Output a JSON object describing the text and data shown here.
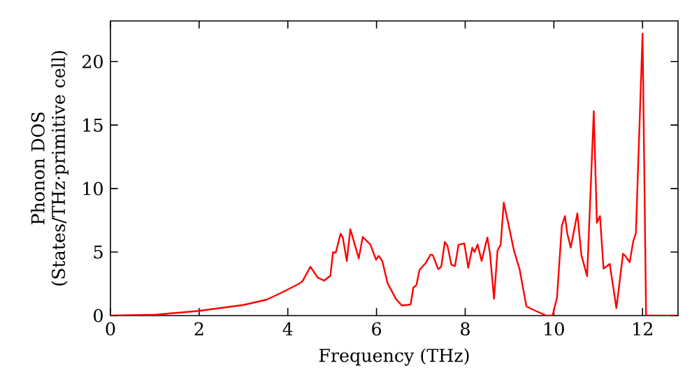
{
  "chart_data": {
    "type": "line",
    "xlabel": "Frequency (THz)",
    "ylabel": "Phonon DOS (States/THz·primitive cell)",
    "xlim": [
      0,
      12.8
    ],
    "ylim": [
      0,
      23.2
    ],
    "xticks": [
      0,
      2,
      4,
      6,
      8,
      10,
      12
    ],
    "yticks": [
      0,
      5,
      10,
      15,
      20
    ],
    "series": [
      {
        "color": "#ff0000",
        "x": [
          0,
          1.02,
          2.0,
          3.0,
          3.52,
          3.83,
          4.25,
          4.33,
          4.51,
          4.67,
          4.82,
          4.96,
          5.02,
          5.08,
          5.19,
          5.24,
          5.33,
          5.41,
          5.6,
          5.69,
          5.86,
          5.99,
          6.05,
          6.13,
          6.25,
          6.44,
          6.57,
          6.7,
          6.77,
          6.83,
          6.9,
          6.97,
          7.11,
          7.22,
          7.27,
          7.39,
          7.46,
          7.54,
          7.6,
          7.69,
          7.77,
          7.85,
          7.98,
          8.07,
          8.16,
          8.21,
          8.28,
          8.37,
          8.5,
          8.56,
          8.65,
          8.73,
          8.8,
          8.87,
          8.99,
          9.1,
          9.23,
          9.38,
          9.52,
          9.83,
          9.97,
          10.07,
          10.18,
          10.25,
          10.3,
          10.38,
          10.53,
          10.62,
          10.75,
          10.9,
          10.97,
          11.04,
          11.12,
          11.26,
          11.41,
          11.56,
          11.61,
          11.71,
          11.79,
          11.85,
          12.0,
          12.08,
          12.76
        ],
        "values": [
          0,
          0.07,
          0.37,
          0.84,
          1.25,
          1.76,
          2.5,
          2.7,
          3.85,
          3.0,
          2.75,
          3.15,
          5.0,
          4.95,
          6.45,
          6.15,
          4.3,
          6.8,
          4.5,
          6.2,
          5.6,
          4.4,
          4.7,
          4.3,
          2.55,
          1.3,
          0.8,
          0.84,
          0.88,
          2.2,
          2.4,
          3.6,
          4.14,
          4.8,
          4.76,
          3.66,
          3.85,
          5.8,
          5.5,
          4.0,
          3.9,
          5.57,
          5.68,
          3.77,
          5.35,
          5.0,
          5.6,
          4.3,
          6.15,
          4.87,
          1.32,
          5.13,
          5.57,
          8.9,
          6.96,
          5.13,
          3.6,
          0.73,
          0.48,
          0,
          0,
          1.4,
          7.07,
          7.84,
          6.5,
          5.35,
          8.06,
          4.76,
          3.1,
          16.1,
          7.3,
          7.84,
          3.7,
          4.07,
          0.58,
          4.87,
          4.7,
          4.2,
          5.86,
          6.5,
          22.2,
          0,
          0
        ]
      }
    ]
  }
}
